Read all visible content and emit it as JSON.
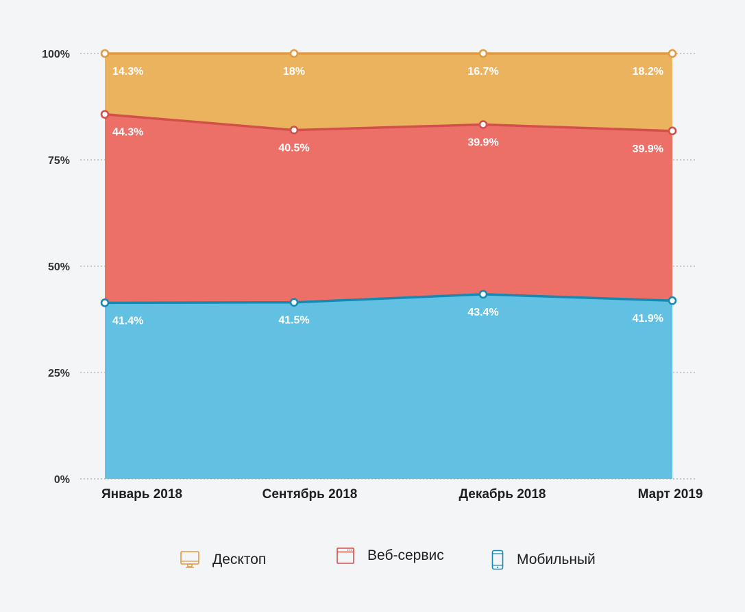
{
  "colors": {
    "background": "#f4f5f7",
    "grid": "#9a9a9a",
    "desktop_fill": "#ecb35f",
    "desktop_line": "#e39a3f",
    "web_fill": "#ec7068",
    "web_line": "#d2504a",
    "mobile_fill": "#62c1e3",
    "mobile_line": "#1688b1"
  },
  "chart_data": {
    "type": "area",
    "stacked": true,
    "percent": true,
    "categories": [
      "Январь 2018",
      "Сентябрь 2018",
      "Декабрь 2018",
      "Март 2019"
    ],
    "series": [
      {
        "name": "Мобильный",
        "values": [
          41.4,
          41.5,
          43.4,
          41.9
        ],
        "labels": [
          "41.4%",
          "41.5%",
          "43.4%",
          "41.9%"
        ],
        "color": "#62c1e3",
        "line_color": "#1688b1",
        "icon": "smartphone-icon"
      },
      {
        "name": "Веб-сервис",
        "values": [
          44.3,
          40.5,
          39.9,
          39.9
        ],
        "labels": [
          "44.3%",
          "40.5%",
          "39.9%",
          "39.9%"
        ],
        "color": "#ec7068",
        "line_color": "#d2504a",
        "icon": "browser-window-icon"
      },
      {
        "name": "Десктоп",
        "values": [
          14.3,
          18,
          16.7,
          18.2
        ],
        "labels": [
          "14.3%",
          "18%",
          "16.7%",
          "18.2%"
        ],
        "color": "#ecb35f",
        "line_color": "#e39a3f",
        "icon": "desktop-monitor-icon"
      }
    ],
    "y_ticks": [
      0,
      25,
      50,
      75,
      100
    ],
    "y_tick_labels": [
      "0%",
      "25%",
      "50%",
      "75%",
      "100%"
    ],
    "ylim": [
      0,
      100
    ],
    "grid": "horizontal dotted",
    "legend_position": "bottom",
    "title": "",
    "xlabel": "",
    "ylabel": ""
  },
  "legend": {
    "items": [
      {
        "label": "Десктоп",
        "icon": "desktop-monitor-icon",
        "color": "#e39a3f"
      },
      {
        "label": "Веб-сервис",
        "icon": "browser-window-icon",
        "color": "#d2504a"
      },
      {
        "label": "Мобильный",
        "icon": "smartphone-icon",
        "color": "#1688b1"
      }
    ]
  }
}
